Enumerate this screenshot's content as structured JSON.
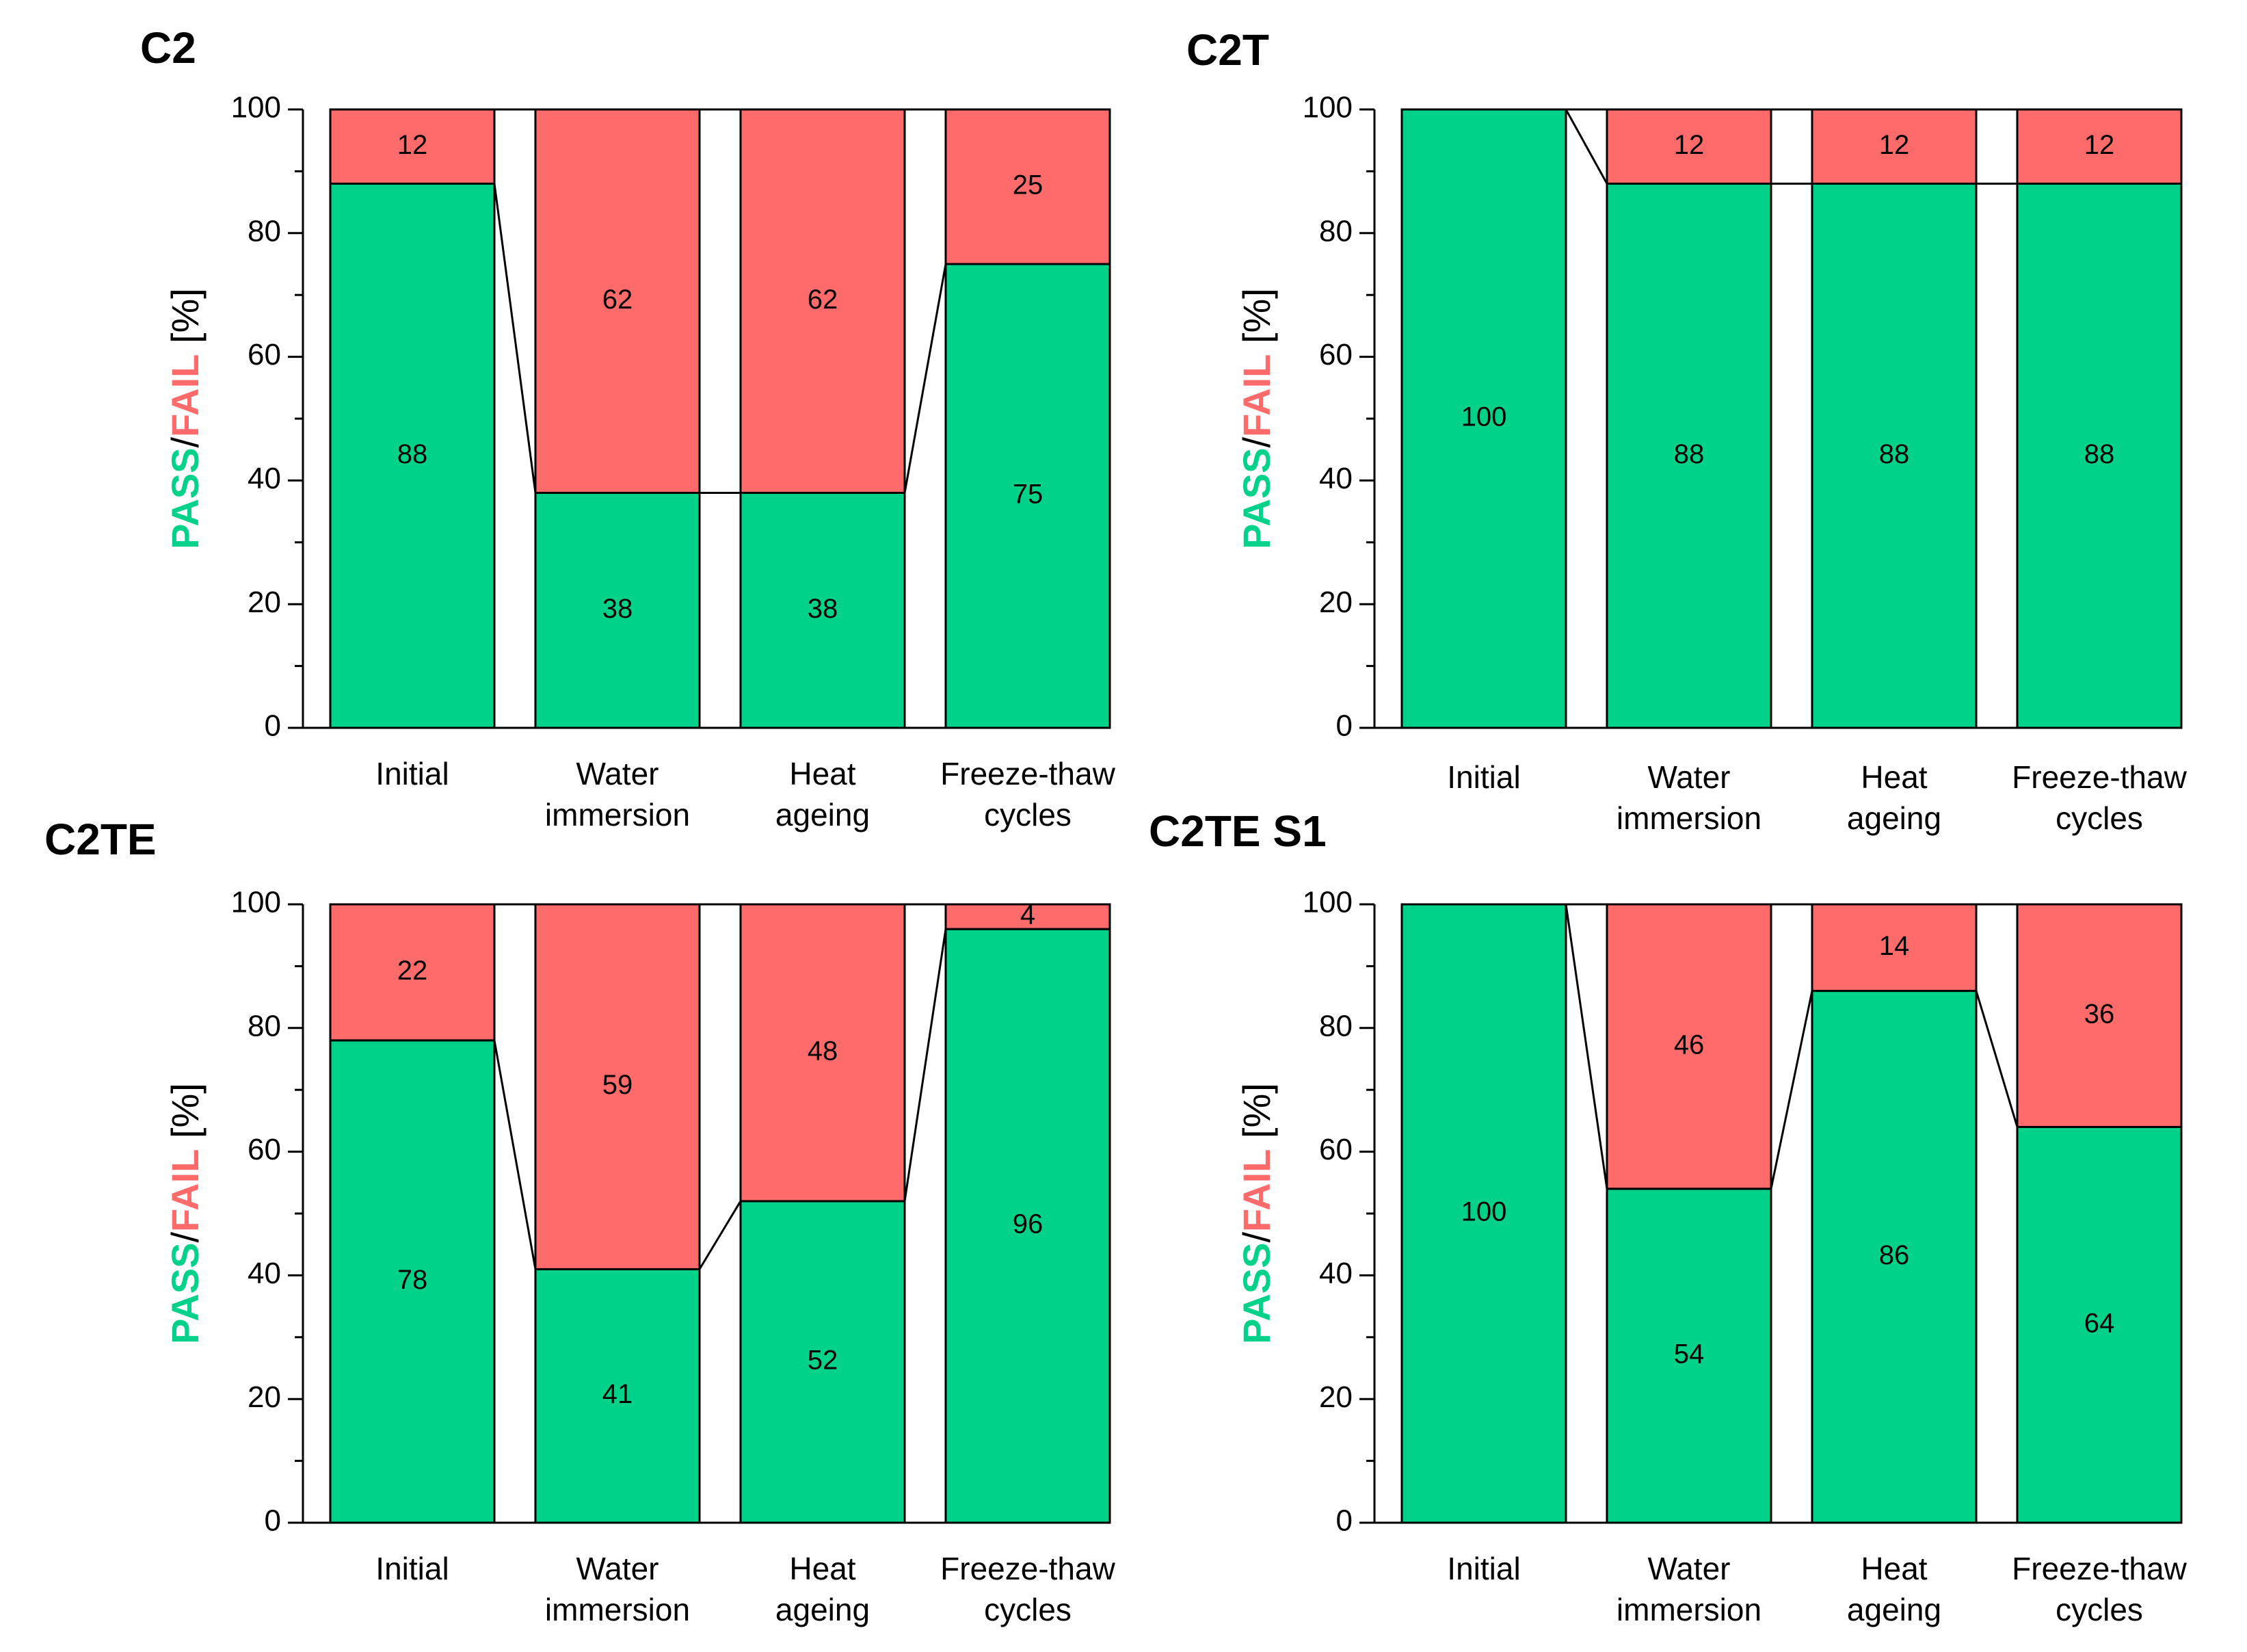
{
  "colors": {
    "pass": "#00d28a",
    "fail": "#ff6b6b",
    "axis": "#000000"
  },
  "ylabel": {
    "pass": "PASS",
    "sep": "/",
    "fail": "FAIL",
    "unit": " [%]"
  },
  "chart_data": [
    {
      "type": "bar",
      "title": "C2",
      "categories": [
        [
          "Initial"
        ],
        [
          "Water",
          "immersion"
        ],
        [
          "Heat",
          "ageing"
        ],
        [
          "Freeze-thaw",
          "cycles"
        ]
      ],
      "series": [
        {
          "name": "PASS",
          "values": [
            88,
            38,
            38,
            75
          ]
        },
        {
          "name": "FAIL",
          "values": [
            12,
            62,
            62,
            25
          ]
        }
      ],
      "ylim": [
        0,
        100
      ],
      "yticks": [
        0,
        20,
        40,
        60,
        80,
        100
      ]
    },
    {
      "type": "bar",
      "title": "C2T",
      "categories": [
        [
          "Initial"
        ],
        [
          "Water",
          "immersion"
        ],
        [
          "Heat",
          "ageing"
        ],
        [
          "Freeze-thaw",
          "cycles"
        ]
      ],
      "series": [
        {
          "name": "PASS",
          "values": [
            100,
            88,
            88,
            88
          ]
        },
        {
          "name": "FAIL",
          "values": [
            0,
            12,
            12,
            12
          ]
        }
      ],
      "ylim": [
        0,
        100
      ],
      "yticks": [
        0,
        20,
        40,
        60,
        80,
        100
      ]
    },
    {
      "type": "bar",
      "title": "C2TE",
      "categories": [
        [
          "Initial"
        ],
        [
          "Water",
          "immersion"
        ],
        [
          "Heat",
          "ageing"
        ],
        [
          "Freeze-thaw",
          "cycles"
        ]
      ],
      "series": [
        {
          "name": "PASS",
          "values": [
            78,
            41,
            52,
            96
          ]
        },
        {
          "name": "FAIL",
          "values": [
            22,
            59,
            48,
            4
          ]
        }
      ],
      "ylim": [
        0,
        100
      ],
      "yticks": [
        0,
        20,
        40,
        60,
        80,
        100
      ]
    },
    {
      "type": "bar",
      "title": "C2TE S1",
      "categories": [
        [
          "Initial"
        ],
        [
          "Water",
          "immersion"
        ],
        [
          "Heat",
          "ageing"
        ],
        [
          "Freeze-thaw",
          "cycles"
        ]
      ],
      "series": [
        {
          "name": "PASS",
          "values": [
            100,
            54,
            86,
            64
          ]
        },
        {
          "name": "FAIL",
          "values": [
            0,
            46,
            14,
            36
          ]
        }
      ],
      "ylim": [
        0,
        100
      ],
      "yticks": [
        0,
        20,
        40,
        60,
        80,
        100
      ]
    }
  ]
}
